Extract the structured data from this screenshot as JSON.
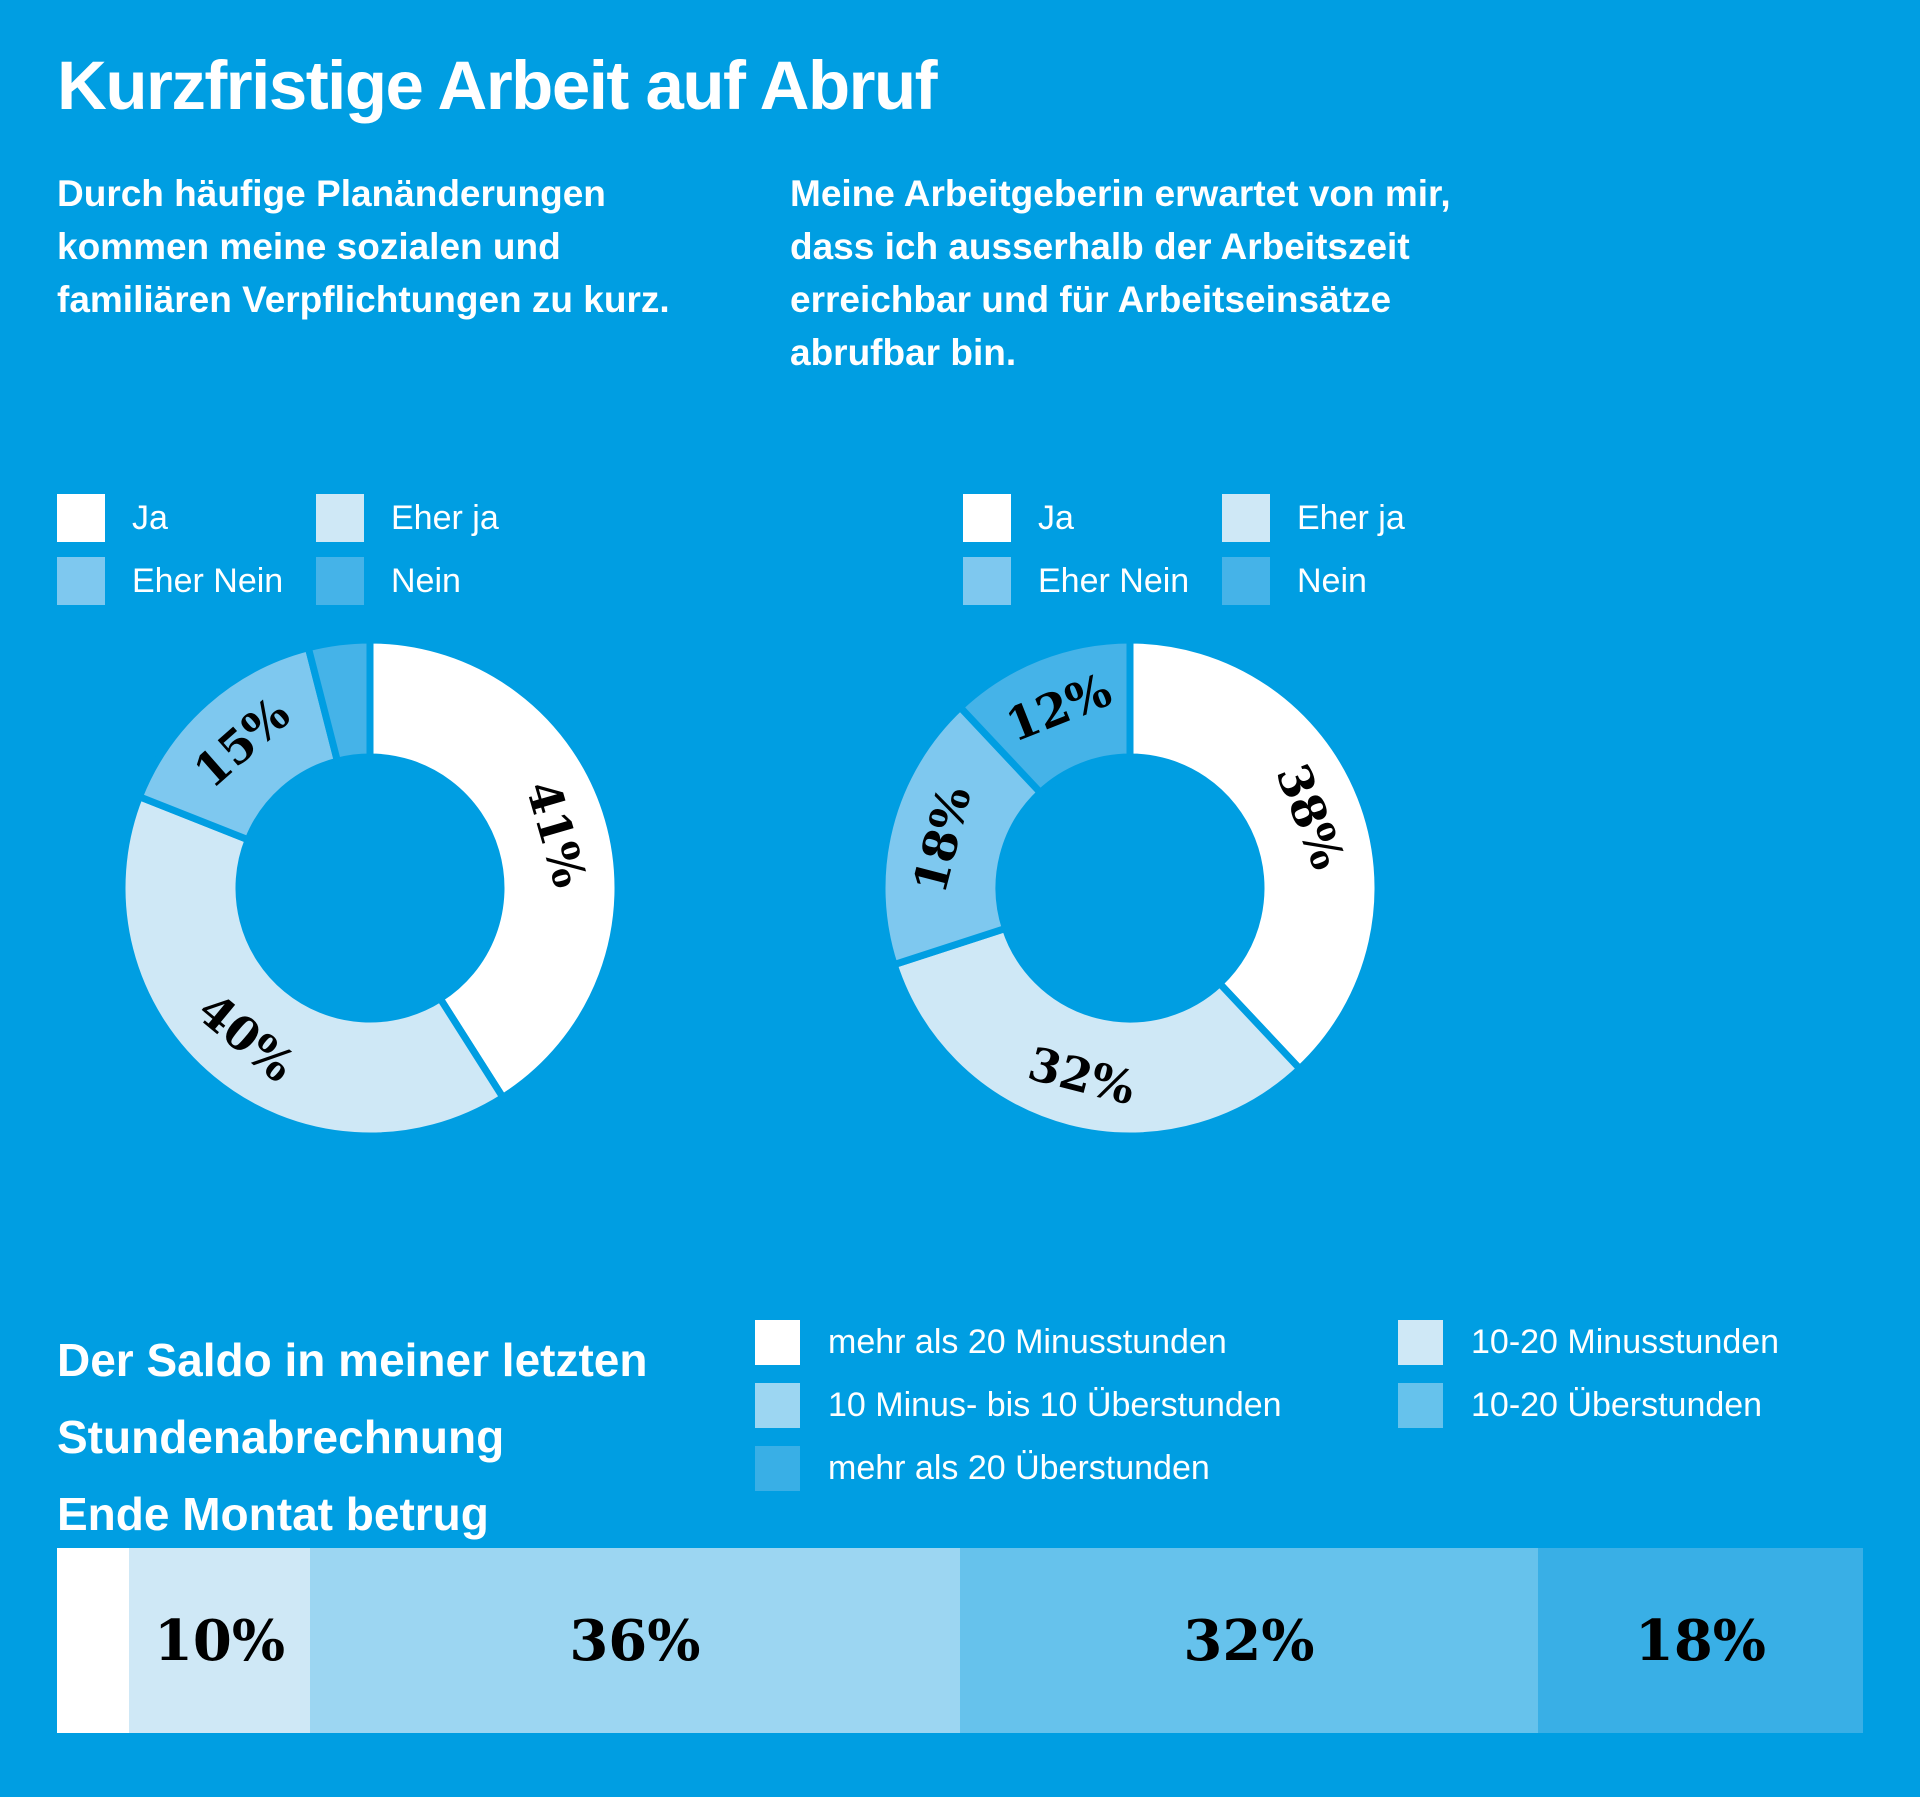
{
  "background_color": "#009EE2",
  "text_color": "#FFFFFF",
  "data_label_color": "#000000",
  "title": "Kurzfristige Arbeit auf Abruf",
  "chart_data": [
    {
      "type": "pie",
      "variant": "donut",
      "question": "Durch häufige Planänderungen\nkommen meine sozialen und\nfamiliären Verpflichtungen zu kurz.",
      "categories": [
        "Ja",
        "Eher ja",
        "Eher Nein",
        "Nein"
      ],
      "values": [
        41,
        40,
        15,
        4
      ],
      "data_labels": [
        "41%",
        "40%",
        "15%",
        ""
      ],
      "colors": [
        "#FFFFFF",
        "#CFE8F6",
        "#7EC8EF",
        "#45B3E8"
      ],
      "start_angle_deg": 0,
      "direction": "clockwise",
      "legend_position": "above-chart",
      "hole_color": "background"
    },
    {
      "type": "pie",
      "variant": "donut",
      "question": "Meine Arbeitgeberin erwartet von mir,\ndass ich ausserhalb der Arbeitszeit\nerreichbar und für Arbeitseinsätze\nabrufbar bin.",
      "categories": [
        "Ja",
        "Eher ja",
        "Eher Nein",
        "Nein"
      ],
      "values": [
        38,
        32,
        18,
        12
      ],
      "data_labels": [
        "38%",
        "32%",
        "18%",
        "12%"
      ],
      "colors": [
        "#FFFFFF",
        "#CFE8F6",
        "#7EC8EF",
        "#45B3E8"
      ],
      "start_angle_deg": 0,
      "direction": "clockwise",
      "legend_position": "above-chart",
      "hole_color": "background"
    },
    {
      "type": "bar",
      "variant": "horizontal-stacked",
      "title": "Der Saldo in meiner letzten\nStundenabrechnung\nEnde Montat betrug",
      "categories": [
        "mehr als 20 Minusstunden",
        "10-20 Minusstunden",
        "10 Minus- bis 10 Überstunden",
        "10-20 Überstunden",
        "mehr als 20 Überstunden"
      ],
      "values": [
        4,
        10,
        36,
        32,
        18
      ],
      "data_labels": [
        "",
        "10%",
        "36%",
        "32%",
        "18%"
      ],
      "colors": [
        "#FFFFFF",
        "#CFE8F6",
        "#9CD6F2",
        "#66C2EC",
        "#39AFE6"
      ],
      "legend_position": "above-chart",
      "xlim": [
        0,
        100
      ]
    }
  ]
}
